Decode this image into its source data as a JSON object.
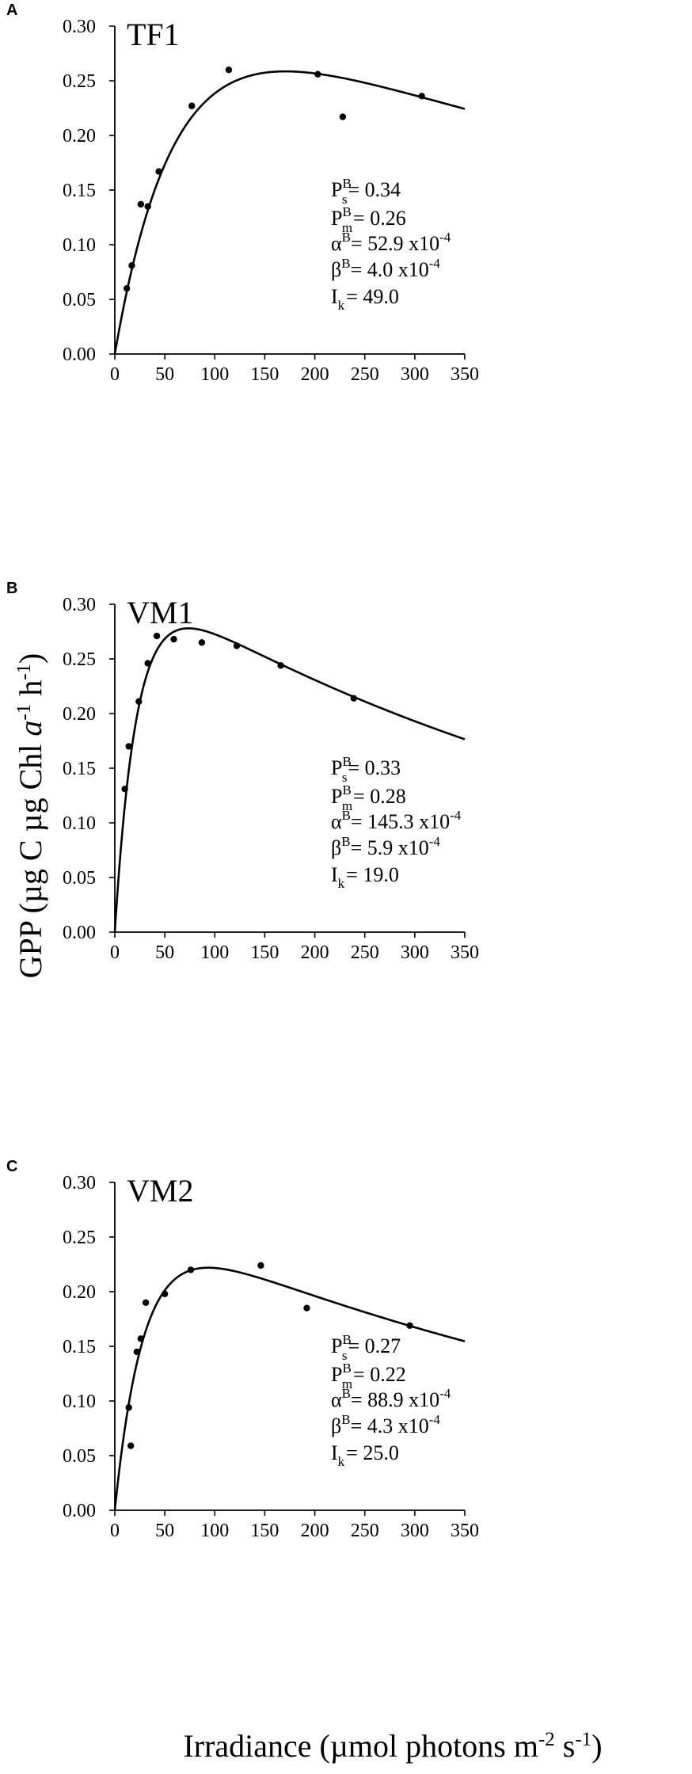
{
  "figure": {
    "ylabel_parts": [
      "GPP (µg C µg Chl ",
      "a",
      "",
      "-1",
      " h",
      "-1",
      ")"
    ],
    "xlabel_parts": [
      "Irradiance (µmol photons m",
      "-2",
      " s",
      "-1",
      ")"
    ]
  },
  "chart_data": [
    {
      "type": "scatter",
      "panel_letter": "A",
      "title": "TF1",
      "xlim": [
        0,
        350
      ],
      "ylim": [
        0,
        0.3
      ],
      "xticks": [
        "0",
        "50",
        "100",
        "150",
        "200",
        "250",
        "300",
        "350"
      ],
      "yticks": [
        "0.00",
        "0.05",
        "0.10",
        "0.15",
        "0.20",
        "0.25",
        "0.30"
      ],
      "points": [
        [
          12,
          0.06
        ],
        [
          17,
          0.081
        ],
        [
          26,
          0.137
        ],
        [
          33,
          0.135
        ],
        [
          44,
          0.167
        ],
        [
          77,
          0.227
        ],
        [
          114,
          0.26
        ],
        [
          203,
          0.256
        ],
        [
          228,
          0.217
        ],
        [
          307,
          0.236
        ]
      ],
      "params": {
        "Ps": 0.34,
        "alpha": 0.00529,
        "beta": 0.0004
      },
      "annotations": [
        {
          "sym": "P",
          "sup": "B",
          "sub": "s",
          "rest": "= 0.34"
        },
        {
          "sym": "P",
          "sup": "B",
          "sub": "m",
          "rest": "= 0.26"
        },
        {
          "sym": "α",
          "sup": "B",
          "sub": "",
          "rest": "= 52.9 x10",
          "rest_sup": "-4"
        },
        {
          "sym": "β",
          "sup": "B",
          "sub": "",
          "rest": "= 4.0 x10",
          "rest_sup": "-4"
        },
        {
          "sym": "I",
          "sup": "",
          "sub": "k",
          "rest": "= 49.0"
        }
      ]
    },
    {
      "type": "scatter",
      "panel_letter": "B",
      "title": "VM1",
      "xlim": [
        0,
        350
      ],
      "ylim": [
        0,
        0.3
      ],
      "xticks": [
        "0",
        "50",
        "100",
        "150",
        "200",
        "250",
        "300",
        "350"
      ],
      "yticks": [
        "0.00",
        "0.05",
        "0.10",
        "0.15",
        "0.20",
        "0.25",
        "0.30"
      ],
      "points": [
        [
          10,
          0.131
        ],
        [
          14,
          0.17
        ],
        [
          24,
          0.211
        ],
        [
          33,
          0.246
        ],
        [
          42,
          0.271
        ],
        [
          59,
          0.268
        ],
        [
          87,
          0.265
        ],
        [
          122,
          0.262
        ],
        [
          166,
          0.244
        ],
        [
          239,
          0.214
        ]
      ],
      "params": {
        "Ps": 0.33,
        "alpha": 0.01453,
        "beta": 0.00059
      },
      "annotations": [
        {
          "sym": "P",
          "sup": "B",
          "sub": "s",
          "rest": "= 0.33"
        },
        {
          "sym": "P",
          "sup": "B",
          "sub": "m",
          "rest": "= 0.28"
        },
        {
          "sym": "α",
          "sup": "B",
          "sub": "",
          "rest": "= 145.3 x10",
          "rest_sup": "-4"
        },
        {
          "sym": "β",
          "sup": "B",
          "sub": "",
          "rest": "= 5.9 x10",
          "rest_sup": "-4"
        },
        {
          "sym": "I",
          "sup": "",
          "sub": "k",
          "rest": "= 19.0"
        }
      ]
    },
    {
      "type": "scatter",
      "panel_letter": "C",
      "title": "VM2",
      "xlim": [
        0,
        350
      ],
      "ylim": [
        0,
        0.3
      ],
      "xticks": [
        "0",
        "50",
        "100",
        "150",
        "200",
        "250",
        "300",
        "350"
      ],
      "yticks": [
        "0.00",
        "0.05",
        "0.10",
        "0.15",
        "0.20",
        "0.25",
        "0.30"
      ],
      "points": [
        [
          14,
          0.094
        ],
        [
          16,
          0.059
        ],
        [
          22,
          0.145
        ],
        [
          26,
          0.157
        ],
        [
          31,
          0.19
        ],
        [
          50,
          0.198
        ],
        [
          76,
          0.22
        ],
        [
          146,
          0.224
        ],
        [
          192,
          0.185
        ],
        [
          295,
          0.169
        ]
      ],
      "params": {
        "Ps": 0.27,
        "alpha": 0.00889,
        "beta": 0.00043
      },
      "annotations": [
        {
          "sym": "P",
          "sup": "B",
          "sub": "s",
          "rest": "= 0.27"
        },
        {
          "sym": "P",
          "sup": "B",
          "sub": "m",
          "rest": "= 0.22"
        },
        {
          "sym": "α",
          "sup": "B",
          "sub": "",
          "rest": "= 88.9 x10",
          "rest_sup": "-4"
        },
        {
          "sym": "β",
          "sup": "B",
          "sub": "",
          "rest": "= 4.3 x10",
          "rest_sup": "-4"
        },
        {
          "sym": "I",
          "sup": "",
          "sub": "k",
          "rest": "= 25.0"
        }
      ]
    }
  ]
}
